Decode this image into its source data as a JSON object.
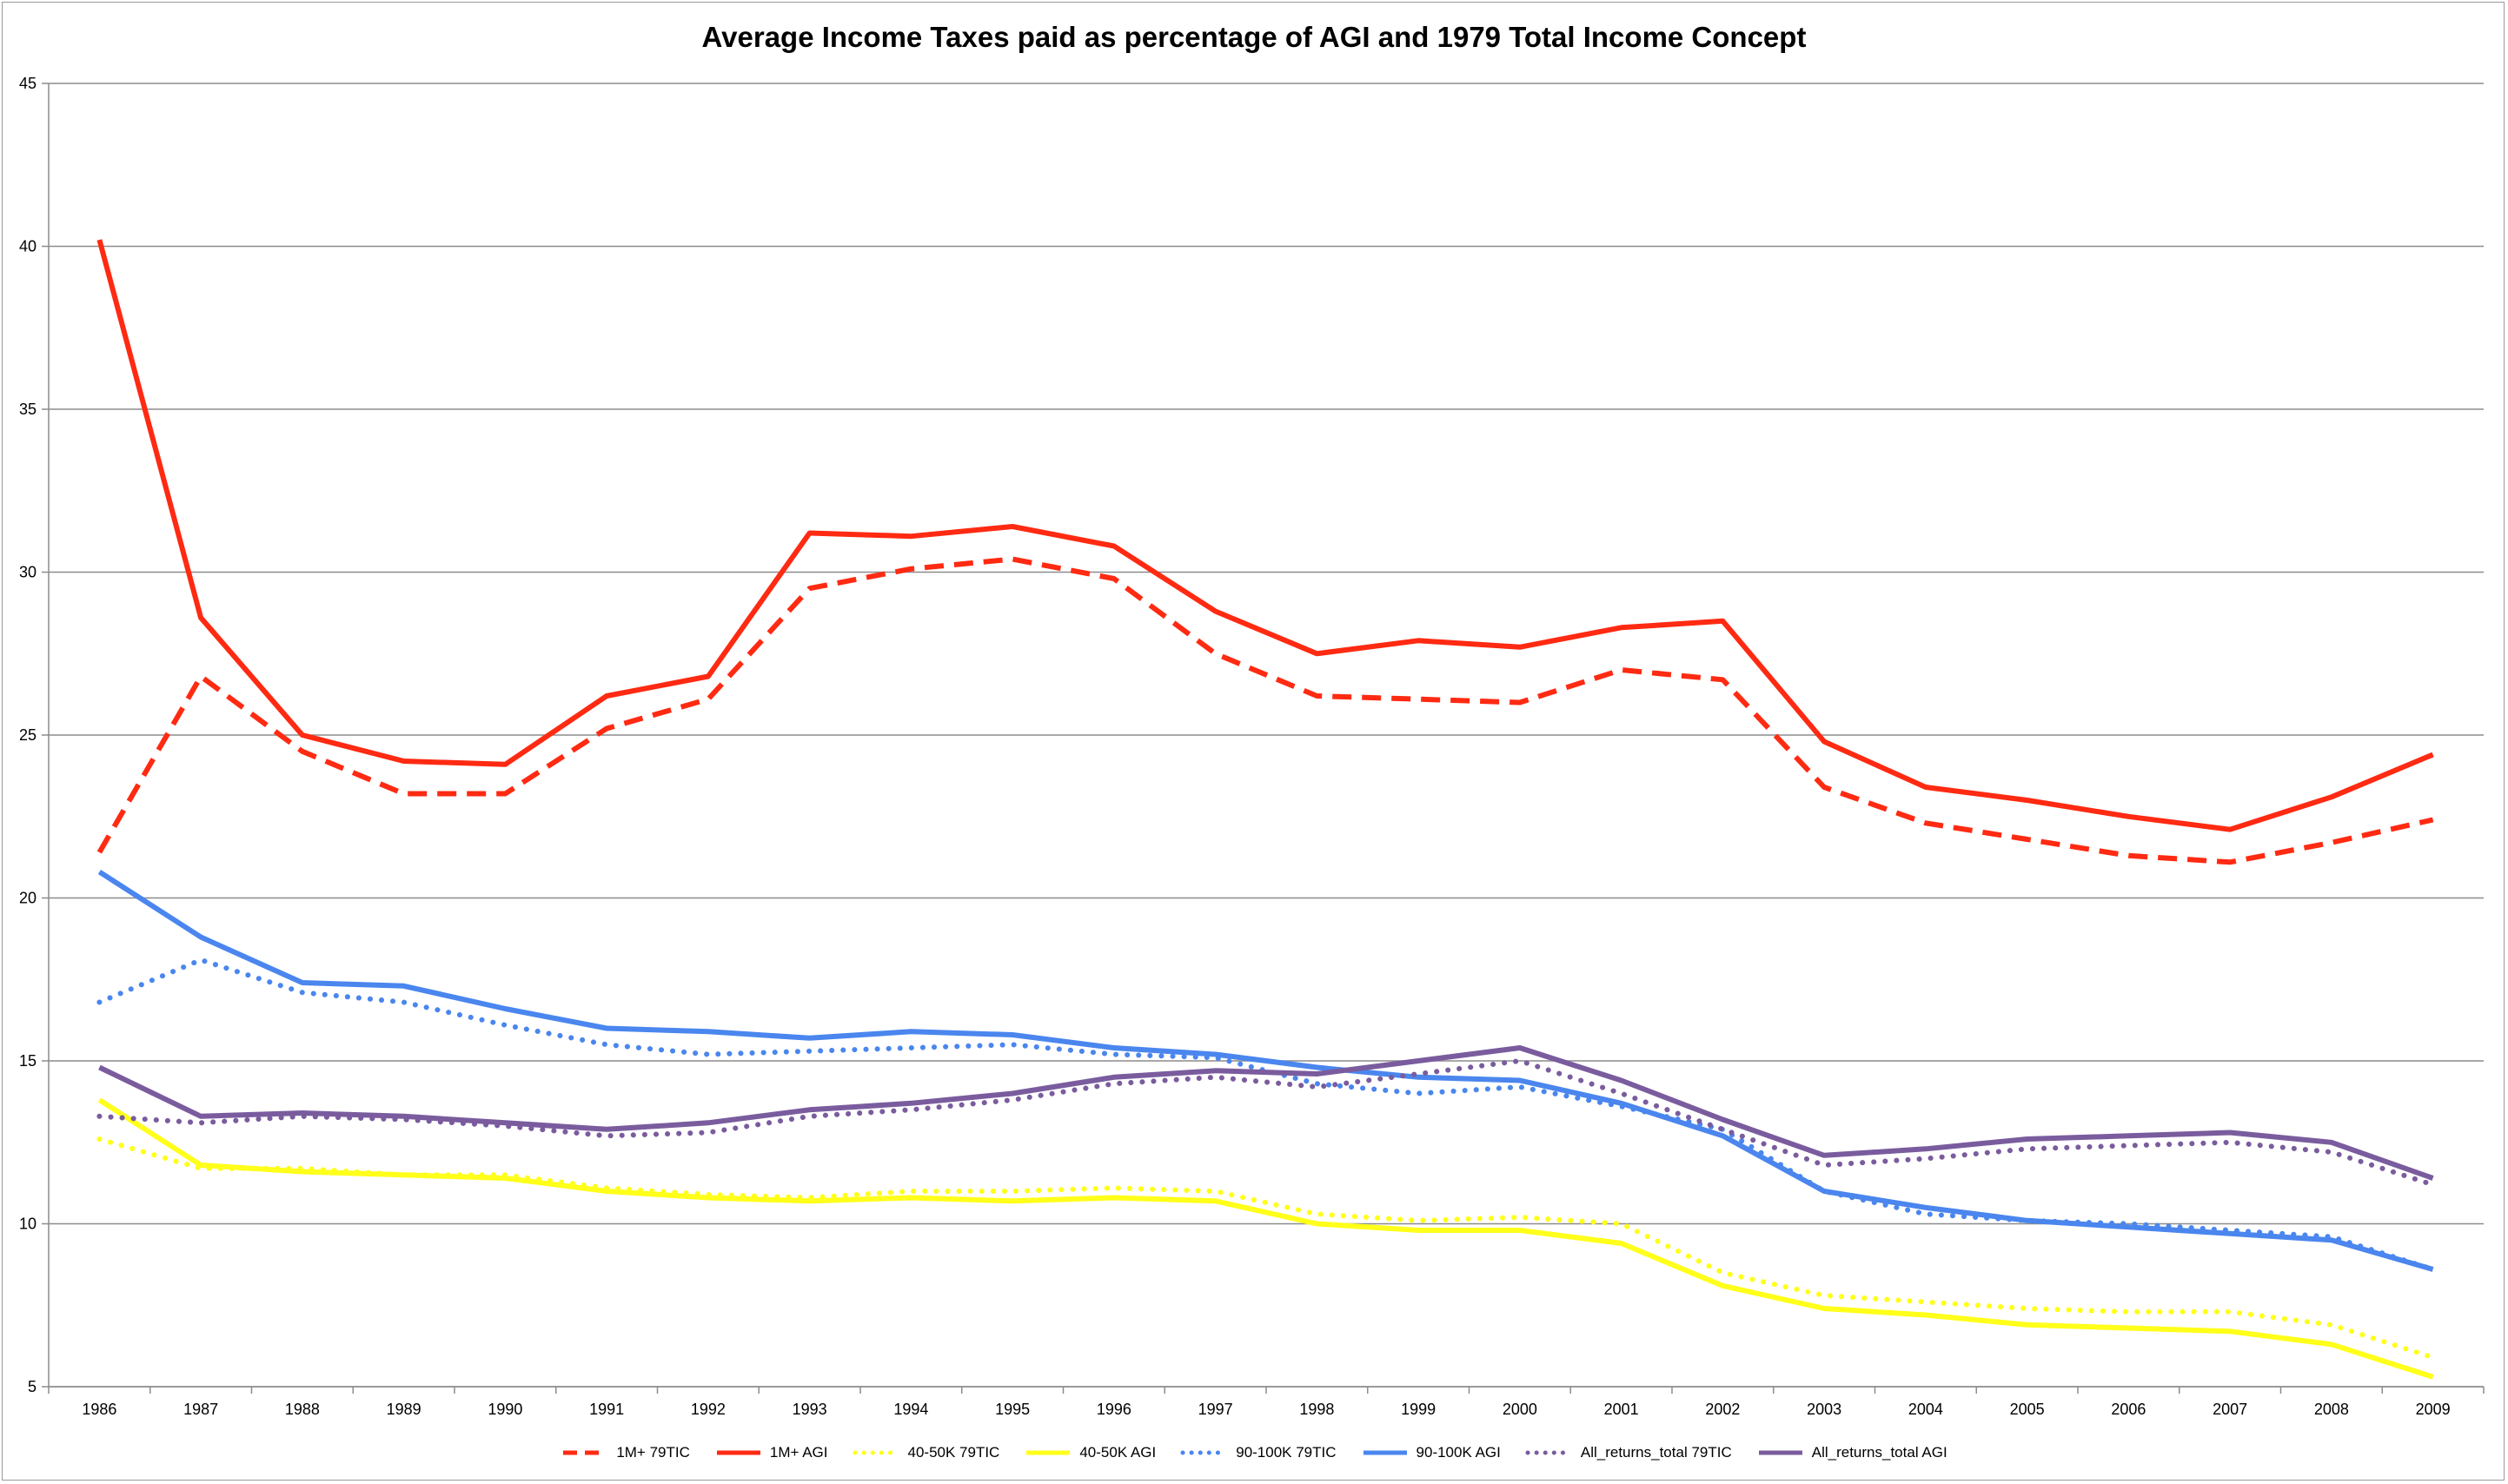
{
  "chart_data": {
    "type": "line",
    "title": "Average Income Taxes paid as percentage of AGI and 1979 Total Income Concept",
    "xlabel": "",
    "ylabel": "",
    "ylim": [
      5,
      45
    ],
    "yticks": [
      5,
      10,
      15,
      20,
      25,
      30,
      35,
      40,
      45
    ],
    "grid": true,
    "legend_position": "bottom",
    "categories": [
      "1986",
      "1987",
      "1988",
      "1989",
      "1990",
      "1991",
      "1992",
      "1993",
      "1994",
      "1995",
      "1996",
      "1997",
      "1998",
      "1999",
      "2000",
      "2001",
      "2002",
      "2003",
      "2004",
      "2005",
      "2006",
      "2007",
      "2008",
      "2009"
    ],
    "series": [
      {
        "name": "1M+ 79TIC",
        "color": "#ff2a12",
        "style": "dashed",
        "values": [
          21.4,
          26.8,
          24.5,
          23.2,
          23.2,
          25.2,
          26.1,
          29.5,
          30.1,
          30.4,
          29.8,
          27.5,
          26.2,
          26.1,
          26.0,
          27.0,
          26.7,
          23.4,
          22.3,
          21.8,
          21.3,
          21.1,
          21.7,
          22.4
        ]
      },
      {
        "name": "1M+ AGI",
        "color": "#ff2a12",
        "style": "solid",
        "values": [
          40.2,
          28.6,
          25.0,
          24.2,
          24.1,
          26.2,
          26.8,
          31.2,
          31.1,
          31.4,
          30.8,
          28.8,
          27.5,
          27.9,
          27.7,
          28.3,
          28.5,
          24.8,
          23.4,
          23.0,
          22.5,
          22.1,
          23.1,
          24.4
        ]
      },
      {
        "name": "40-50K 79TIC",
        "color": "#ffff19",
        "style": "dotted",
        "values": [
          12.6,
          11.7,
          11.7,
          11.5,
          11.5,
          11.1,
          10.9,
          10.8,
          11.0,
          11.0,
          11.1,
          11.0,
          10.3,
          10.1,
          10.2,
          10.0,
          8.5,
          7.8,
          7.6,
          7.4,
          7.3,
          7.3,
          6.9,
          5.9
        ]
      },
      {
        "name": "40-50K AGI",
        "color": "#ffff19",
        "style": "solid",
        "values": [
          13.8,
          11.8,
          11.6,
          11.5,
          11.4,
          11.0,
          10.8,
          10.7,
          10.8,
          10.7,
          10.8,
          10.7,
          10.0,
          9.8,
          9.8,
          9.4,
          8.1,
          7.4,
          7.2,
          6.9,
          6.8,
          6.7,
          6.3,
          5.3
        ]
      },
      {
        "name": "90-100K 79TIC",
        "color": "#4a86ee",
        "style": "dotted",
        "values": [
          16.8,
          18.1,
          17.1,
          16.8,
          16.1,
          15.5,
          15.2,
          15.3,
          15.4,
          15.5,
          15.2,
          15.1,
          14.3,
          14.0,
          14.2,
          13.6,
          12.9,
          11.0,
          10.3,
          10.1,
          10.0,
          9.8,
          9.6,
          8.6
        ]
      },
      {
        "name": "90-100K AGI",
        "color": "#4a86ee",
        "style": "solid",
        "values": [
          20.8,
          18.8,
          17.4,
          17.3,
          16.6,
          16.0,
          15.9,
          15.7,
          15.9,
          15.8,
          15.4,
          15.2,
          14.8,
          14.5,
          14.4,
          13.7,
          12.7,
          11.0,
          10.5,
          10.1,
          9.9,
          9.7,
          9.5,
          8.6
        ]
      },
      {
        "name": "All_returns_total 79TIC",
        "color": "#7a5c9e",
        "style": "dotted",
        "values": [
          13.3,
          13.1,
          13.3,
          13.2,
          13.0,
          12.7,
          12.8,
          13.3,
          13.5,
          13.8,
          14.3,
          14.5,
          14.2,
          14.6,
          15.0,
          14.0,
          12.9,
          11.8,
          12.0,
          12.3,
          12.4,
          12.5,
          12.2,
          11.2
        ]
      },
      {
        "name": "All_returns_total AGI",
        "color": "#7a5c9e",
        "style": "solid",
        "values": [
          14.8,
          13.3,
          13.4,
          13.3,
          13.1,
          12.9,
          13.1,
          13.5,
          13.7,
          14.0,
          14.5,
          14.7,
          14.6,
          15.0,
          15.4,
          14.4,
          13.2,
          12.1,
          12.3,
          12.6,
          12.7,
          12.8,
          12.5,
          11.4
        ]
      }
    ]
  }
}
